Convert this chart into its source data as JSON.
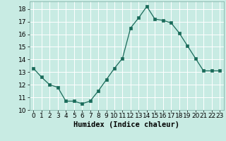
{
  "x": [
    0,
    1,
    2,
    3,
    4,
    5,
    6,
    7,
    8,
    9,
    10,
    11,
    12,
    13,
    14,
    15,
    16,
    17,
    18,
    19,
    20,
    21,
    22,
    23
  ],
  "y": [
    13.3,
    12.6,
    12.0,
    11.8,
    10.7,
    10.7,
    10.5,
    10.7,
    11.5,
    12.4,
    13.3,
    14.1,
    16.5,
    17.3,
    18.2,
    17.2,
    17.1,
    16.9,
    16.1,
    15.1,
    14.1,
    13.1,
    13.1,
    13.1
  ],
  "xlabel": "Humidex (Indice chaleur)",
  "xlim": [
    -0.5,
    23.5
  ],
  "ylim": [
    10,
    18.6
  ],
  "yticks": [
    10,
    11,
    12,
    13,
    14,
    15,
    16,
    17,
    18
  ],
  "xticks": [
    0,
    1,
    2,
    3,
    4,
    5,
    6,
    7,
    8,
    9,
    10,
    11,
    12,
    13,
    14,
    15,
    16,
    17,
    18,
    19,
    20,
    21,
    22,
    23
  ],
  "line_color": "#1a6b5a",
  "marker": "s",
  "marker_size": 2.5,
  "bg_color": "#c8ebe3",
  "grid_color": "#ffffff",
  "tick_fontsize": 6.5,
  "xlabel_fontsize": 7.5
}
